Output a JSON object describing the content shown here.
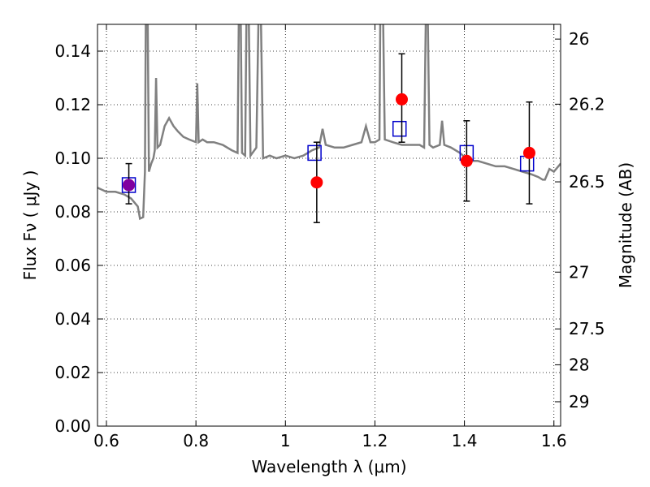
{
  "chart_data": {
    "type": "scatter",
    "xlabel": "Wavelength  λ (μm)",
    "ylabel": "Flux  Fν  ( μJy )",
    "y2label": "Magnitude (AB)",
    "xlim": [
      0.58,
      1.615
    ],
    "ylim": [
      0.0,
      0.15
    ],
    "grid": true,
    "x_ticks": [
      0.6,
      0.8,
      1.0,
      1.2,
      1.4,
      1.6
    ],
    "x_tick_labels": [
      "0.6",
      "0.8",
      "1",
      "1.2",
      "1.4",
      "1.6"
    ],
    "y_ticks": [
      0.0,
      0.02,
      0.04,
      0.06,
      0.08,
      0.1,
      0.12,
      0.14
    ],
    "y_tick_labels": [
      "0.00",
      "0.02",
      "0.04",
      "0.06",
      "0.08",
      "0.10",
      "0.12",
      "0.14"
    ],
    "y2_ticks": [
      {
        "label": "26",
        "flux": 0.1445
      },
      {
        "label": "26.2",
        "flux": 0.1202
      },
      {
        "label": "26.5",
        "flux": 0.0912
      },
      {
        "label": "27",
        "flux": 0.0575
      },
      {
        "label": "27.5",
        "flux": 0.0363
      },
      {
        "label": "28",
        "flux": 0.0229
      },
      {
        "label": "29",
        "flux": 0.0091
      }
    ],
    "series": [
      {
        "style": "line",
        "color": "#808080",
        "points": [
          [
            0.58,
            0.089
          ],
          [
            0.6,
            0.0875
          ],
          [
            0.62,
            0.0875
          ],
          [
            0.64,
            0.0865
          ],
          [
            0.655,
            0.085
          ],
          [
            0.665,
            0.083
          ],
          [
            0.67,
            0.082
          ],
          [
            0.675,
            0.0775
          ],
          [
            0.682,
            0.078
          ],
          [
            0.686,
            0.095
          ],
          [
            0.688,
            0.155
          ],
          [
            0.692,
            0.155
          ],
          [
            0.695,
            0.095
          ],
          [
            0.7,
            0.098
          ],
          [
            0.705,
            0.1
          ],
          [
            0.708,
            0.103
          ],
          [
            0.711,
            0.13
          ],
          [
            0.714,
            0.104
          ],
          [
            0.72,
            0.105
          ],
          [
            0.73,
            0.112
          ],
          [
            0.74,
            0.115
          ],
          [
            0.75,
            0.112
          ],
          [
            0.76,
            0.11
          ],
          [
            0.772,
            0.108
          ],
          [
            0.785,
            0.107
          ],
          [
            0.8,
            0.106
          ],
          [
            0.803,
            0.128
          ],
          [
            0.806,
            0.106
          ],
          [
            0.815,
            0.107
          ],
          [
            0.825,
            0.106
          ],
          [
            0.84,
            0.106
          ],
          [
            0.86,
            0.105
          ],
          [
            0.88,
            0.103
          ],
          [
            0.893,
            0.102
          ],
          [
            0.896,
            0.155
          ],
          [
            0.9,
            0.155
          ],
          [
            0.903,
            0.102
          ],
          [
            0.91,
            0.101
          ],
          [
            0.913,
            0.155
          ],
          [
            0.918,
            0.155
          ],
          [
            0.922,
            0.101
          ],
          [
            0.935,
            0.104
          ],
          [
            0.94,
            0.155
          ],
          [
            0.945,
            0.155
          ],
          [
            0.95,
            0.1
          ],
          [
            0.965,
            0.101
          ],
          [
            0.98,
            0.1
          ],
          [
            1.0,
            0.101
          ],
          [
            1.02,
            0.1
          ],
          [
            1.04,
            0.101
          ],
          [
            1.06,
            0.103
          ],
          [
            1.075,
            0.104
          ],
          [
            1.083,
            0.111
          ],
          [
            1.09,
            0.105
          ],
          [
            1.11,
            0.104
          ],
          [
            1.13,
            0.104
          ],
          [
            1.15,
            0.105
          ],
          [
            1.17,
            0.106
          ],
          [
            1.18,
            0.112
          ],
          [
            1.19,
            0.106
          ],
          [
            1.2,
            0.106
          ],
          [
            1.21,
            0.107
          ],
          [
            1.212,
            0.155
          ],
          [
            1.218,
            0.155
          ],
          [
            1.222,
            0.107
          ],
          [
            1.24,
            0.106
          ],
          [
            1.26,
            0.105
          ],
          [
            1.28,
            0.105
          ],
          [
            1.3,
            0.105
          ],
          [
            1.31,
            0.104
          ],
          [
            1.314,
            0.155
          ],
          [
            1.318,
            0.155
          ],
          [
            1.322,
            0.105
          ],
          [
            1.33,
            0.104
          ],
          [
            1.345,
            0.105
          ],
          [
            1.35,
            0.114
          ],
          [
            1.355,
            0.105
          ],
          [
            1.37,
            0.104
          ],
          [
            1.39,
            0.102
          ],
          [
            1.41,
            0.099
          ],
          [
            1.43,
            0.099
          ],
          [
            1.45,
            0.098
          ],
          [
            1.47,
            0.097
          ],
          [
            1.49,
            0.097
          ],
          [
            1.51,
            0.096
          ],
          [
            1.53,
            0.095
          ],
          [
            1.55,
            0.094
          ],
          [
            1.565,
            0.093
          ],
          [
            1.575,
            0.092
          ],
          [
            1.58,
            0.092
          ],
          [
            1.59,
            0.096
          ],
          [
            1.6,
            0.095
          ],
          [
            1.615,
            0.098
          ]
        ]
      },
      {
        "style": "errorbar-points",
        "color": "#ff0000",
        "points": [
          {
            "x": 0.65,
            "y": 0.09,
            "err_low": 0.083,
            "err_high": 0.098
          },
          {
            "x": 1.07,
            "y": 0.091,
            "err_low": 0.076,
            "err_high": 0.106
          },
          {
            "x": 1.26,
            "y": 0.122,
            "err_low": 0.106,
            "err_high": 0.139
          },
          {
            "x": 1.405,
            "y": 0.099,
            "err_low": 0.084,
            "err_high": 0.114
          },
          {
            "x": 1.545,
            "y": 0.102,
            "err_low": 0.083,
            "err_high": 0.121
          }
        ]
      },
      {
        "style": "open-squares",
        "color": "#0000cc",
        "points": [
          {
            "x": 0.65,
            "y": 0.09
          },
          {
            "x": 1.065,
            "y": 0.102
          },
          {
            "x": 1.255,
            "y": 0.111
          },
          {
            "x": 1.405,
            "y": 0.102
          },
          {
            "x": 1.54,
            "y": 0.098
          }
        ]
      },
      {
        "style": "points",
        "color": "#8000a0",
        "points": [
          {
            "x": 0.65,
            "y": 0.09
          }
        ]
      }
    ]
  }
}
